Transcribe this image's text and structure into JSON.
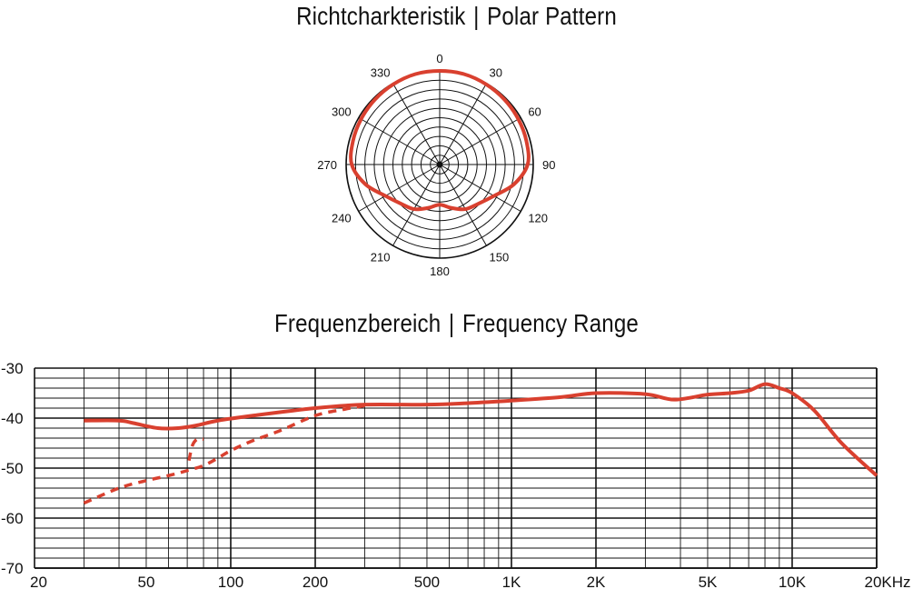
{
  "polar_title": {
    "left": "Richtcharkteristik",
    "sep": "|",
    "right": "Polar Pattern"
  },
  "freq_title": {
    "left": "Frequenzbereich",
    "sep": "|",
    "right": "Frequency Range"
  },
  "colors": {
    "curve": "#d9402f",
    "grid": "#111111"
  },
  "chart_data": [
    {
      "type": "polar",
      "angle_labels": [
        "0",
        "30",
        "60",
        "90",
        "120",
        "150",
        "180",
        "210",
        "240",
        "270",
        "300",
        "330"
      ],
      "angles": [
        0,
        30,
        60,
        90,
        120,
        150,
        180,
        210,
        240,
        270,
        300,
        330
      ],
      "rings": 10,
      "series": [
        {
          "angles": [
            0,
            15,
            30,
            45,
            60,
            75,
            90,
            105,
            120,
            135,
            150,
            165,
            180,
            195,
            210,
            225,
            240,
            255,
            270,
            285,
            300,
            315,
            330,
            345
          ],
          "radius": [
            1.0,
            1.0,
            0.99,
            0.98,
            0.97,
            0.96,
            0.94,
            0.82,
            0.67,
            0.59,
            0.55,
            0.48,
            0.43,
            0.48,
            0.55,
            0.59,
            0.67,
            0.82,
            0.94,
            0.96,
            0.97,
            0.98,
            0.99,
            1.0
          ]
        }
      ]
    },
    {
      "type": "line",
      "x_scale": "log",
      "xlim": [
        20,
        20000
      ],
      "ylim": [
        -70,
        -30
      ],
      "x_tick_values": [
        20,
        50,
        100,
        200,
        500,
        1000,
        2000,
        5000,
        10000,
        20000
      ],
      "x_tick_labels": [
        "20",
        "50",
        "100",
        "200",
        "500",
        "1K",
        "2K",
        "5K",
        "10K",
        "20KHz"
      ],
      "y_tick_values": [
        -30,
        -40,
        -50,
        -60,
        -70
      ],
      "y_tick_labels": [
        "-30",
        "-40",
        "-50",
        "-60",
        "-70"
      ],
      "grid": true,
      "series": [
        {
          "style": "solid",
          "x": [
            30,
            40,
            45,
            55,
            65,
            75,
            90,
            120,
            200,
            300,
            500,
            700,
            1000,
            1500,
            2000,
            3000,
            3800,
            5000,
            6000,
            7000,
            8000,
            9000,
            10000,
            12000,
            15000,
            20000
          ],
          "y": [
            -40.5,
            -40.5,
            -41.0,
            -42.0,
            -42.0,
            -41.5,
            -40.5,
            -39.5,
            -38.0,
            -37.3,
            -37.3,
            -37.0,
            -36.5,
            -35.8,
            -35.0,
            -35.2,
            -36.3,
            -35.3,
            -35.0,
            -34.5,
            -33.2,
            -34.0,
            -35.0,
            -38.5,
            -45.0,
            -51.5
          ]
        },
        {
          "style": "dashed",
          "x": [
            30,
            40,
            50,
            60,
            70,
            80,
            90,
            100,
            120,
            150,
            200,
            250,
            300
          ],
          "y": [
            -57.0,
            -54.0,
            -52.5,
            -51.5,
            -50.5,
            -49.5,
            -48.0,
            -46.5,
            -44.5,
            -42.5,
            -39.5,
            -38.3,
            -37.5
          ]
        },
        {
          "style": "dashed",
          "x": [
            71,
            73,
            76,
            80
          ],
          "y": [
            -48.5,
            -45.5,
            -44.2,
            -44.2
          ]
        }
      ]
    }
  ]
}
